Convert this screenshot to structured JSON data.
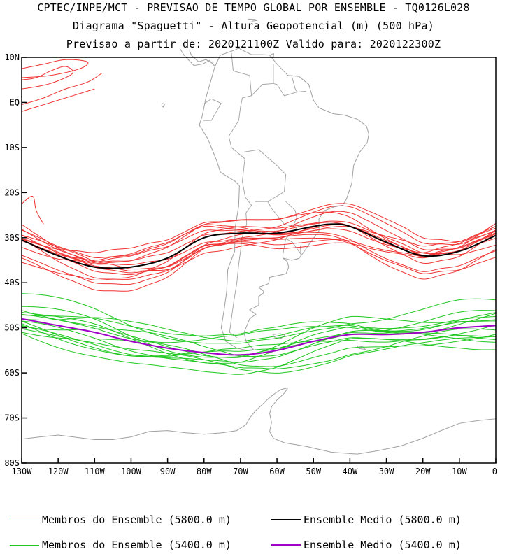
{
  "header": {
    "line1": "CPTEC/INPE/MCT - PREVISAO DE TEMPO GLOBAL POR ENSEMBLE - TQ0126L028",
    "line2": "Diagrama \"Spaguetti\" - Altura Geopotencial (m) (500 hPa)",
    "line3": "Previsao a partir de: 2020121100Z  Valido para: 2020122300Z"
  },
  "axes": {
    "lat_ticks": [
      {
        "value": 10,
        "label": "10N"
      },
      {
        "value": 0,
        "label": "EQ"
      },
      {
        "value": -10,
        "label": "10S"
      },
      {
        "value": -20,
        "label": "20S"
      },
      {
        "value": -30,
        "label": "30S"
      },
      {
        "value": -40,
        "label": "40S"
      },
      {
        "value": -50,
        "label": "50S"
      },
      {
        "value": -60,
        "label": "60S"
      },
      {
        "value": -70,
        "label": "70S"
      },
      {
        "value": -80,
        "label": "80S"
      }
    ],
    "lon_ticks": [
      {
        "value": -130,
        "label": "130W"
      },
      {
        "value": -120,
        "label": "120W"
      },
      {
        "value": -110,
        "label": "110W"
      },
      {
        "value": -100,
        "label": "100W"
      },
      {
        "value": -90,
        "label": "90W"
      },
      {
        "value": -80,
        "label": "80W"
      },
      {
        "value": -70,
        "label": "70W"
      },
      {
        "value": -60,
        "label": "60W"
      },
      {
        "value": -50,
        "label": "50W"
      },
      {
        "value": -40,
        "label": "40W"
      },
      {
        "value": -30,
        "label": "30W"
      },
      {
        "value": -20,
        "label": "20W"
      },
      {
        "value": -10,
        "label": "10W"
      },
      {
        "value": 0,
        "label": "0"
      }
    ],
    "lon_range": [
      -130,
      0
    ],
    "lat_range": [
      -80,
      10
    ]
  },
  "colors": {
    "member_5800": "#f03232",
    "mean_5800": "#000000",
    "member_5400": "#1ec81e",
    "mean_5400": "#a000c8",
    "coast": "#a0a0a0"
  },
  "legend": {
    "member_5800": "Membros do Ensemble (5800.0 m)",
    "mean_5800": "Ensemble Medio (5800.0 m)",
    "member_5400": "Membros do Ensemble (5400.0 m)",
    "mean_5400": "Ensemble Medio (5400.0 m)"
  },
  "chart_data": {
    "type": "line",
    "mean_5800": [
      [
        -130,
        -30.5
      ],
      [
        -120,
        -34
      ],
      [
        -110,
        -36.5
      ],
      [
        -100,
        -36.5
      ],
      [
        -90,
        -34.5
      ],
      [
        -80,
        -30
      ],
      [
        -70,
        -29
      ],
      [
        -60,
        -29
      ],
      [
        -50,
        -27.5
      ],
      [
        -45,
        -27
      ],
      [
        -40,
        -27.5
      ],
      [
        -30,
        -31
      ],
      [
        -20,
        -34
      ],
      [
        -10,
        -33
      ],
      [
        0,
        -29.5
      ]
    ],
    "mean_5400": [
      [
        -130,
        -48
      ],
      [
        -120,
        -49.5
      ],
      [
        -110,
        -51
      ],
      [
        -100,
        -53
      ],
      [
        -90,
        -54.5
      ],
      [
        -80,
        -55.5
      ],
      [
        -70,
        -56
      ],
      [
        -60,
        -55
      ],
      [
        -50,
        -53
      ],
      [
        -40,
        -51.5
      ],
      [
        -30,
        -51.5
      ],
      [
        -20,
        -51
      ],
      [
        -10,
        -50
      ],
      [
        0,
        -49.5
      ]
    ]
  }
}
